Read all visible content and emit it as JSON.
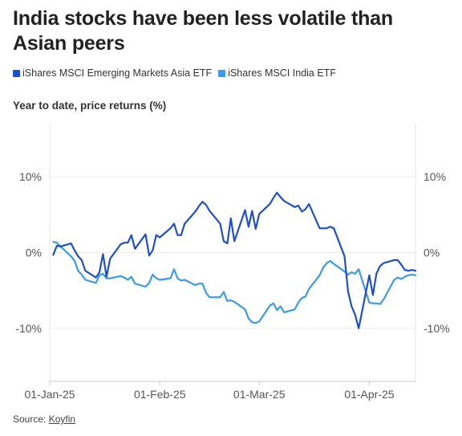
{
  "title": "India stocks have been less volatile than Asian peers",
  "legend": [
    {
      "label": "iShares MSCI Emerging Markets Asia ETF",
      "color": "#1f4fc9"
    },
    {
      "label": "iShares MSCI India ETF",
      "color": "#3a9be8"
    }
  ],
  "subtitle": "Year to date, price returns (%)",
  "source": {
    "prefix": "Source: ",
    "link": "Koyfin"
  },
  "chart_data": {
    "type": "line",
    "xlabel": "",
    "ylabel": "",
    "x_range": [
      0,
      103
    ],
    "ylim": [
      -17,
      17
    ],
    "y_ticks": [
      10,
      0,
      -10
    ],
    "y_tick_labels": [
      "10%",
      "0%",
      "-10%"
    ],
    "x_ticks": [
      {
        "x": 0,
        "label": "01-Jan-25"
      },
      {
        "x": 31,
        "label": "01-Feb-25"
      },
      {
        "x": 59,
        "label": "01-Mar-25"
      },
      {
        "x": 90,
        "label": "01-Apr-25"
      }
    ],
    "grid": "horizontal",
    "series": [
      {
        "name": "iShares MSCI Emerging Markets Asia ETF",
        "color": "#1f4fc9",
        "x": [
          1,
          2,
          3,
          6,
          7,
          8,
          9,
          10,
          13,
          14,
          15,
          16,
          17,
          20,
          21,
          22,
          23,
          24,
          27,
          28,
          29,
          30,
          31,
          34,
          35,
          36,
          37,
          38,
          41,
          42,
          43,
          44,
          45,
          48,
          49,
          50,
          51,
          52,
          55,
          56,
          57,
          58,
          59,
          62,
          63,
          64,
          65,
          66,
          69,
          70,
          71,
          72,
          73,
          76,
          77,
          78,
          79,
          80,
          83,
          84,
          85,
          86,
          87,
          90,
          91,
          92,
          93,
          94,
          97,
          98,
          99,
          100,
          101,
          102,
          103
        ],
        "y": [
          -0.3,
          0.9,
          0.8,
          1.2,
          0.3,
          -0.5,
          -1.0,
          -2.4,
          -3.3,
          -2.6,
          -0.2,
          -3.2,
          -0.8,
          1.1,
          1.3,
          1.3,
          2.3,
          0.5,
          2.4,
          -0.4,
          0.3,
          2.3,
          2.0,
          3.2,
          3.8,
          2.3,
          2.3,
          3.8,
          5.4,
          6.1,
          6.7,
          6.3,
          5.5,
          3.8,
          1.5,
          1.2,
          4.5,
          1.5,
          5.6,
          3.4,
          5.5,
          3.1,
          5.1,
          6.4,
          7.2,
          7.9,
          7.3,
          6.8,
          6.0,
          6.2,
          5.4,
          5.7,
          6.4,
          3.2,
          3.2,
          3.2,
          3.4,
          3.2,
          -0.5,
          -5.1,
          -7.1,
          -8.2,
          -10.0,
          -3.0,
          -5.6,
          -2.8,
          -1.8,
          -1.4,
          -1.0,
          -1.0,
          -1.6,
          -2.3,
          -2.4,
          -2.3,
          -2.4
        ],
        "x_note": "day of year"
      },
      {
        "name": "iShares MSCI India ETF",
        "color": "#3a9be8",
        "x": [
          1,
          2,
          3,
          6,
          7,
          8,
          9,
          10,
          13,
          14,
          15,
          16,
          17,
          20,
          21,
          22,
          23,
          24,
          27,
          28,
          29,
          30,
          31,
          34,
          35,
          36,
          37,
          38,
          41,
          42,
          43,
          44,
          45,
          48,
          49,
          50,
          51,
          52,
          55,
          56,
          57,
          58,
          59,
          62,
          63,
          64,
          65,
          66,
          69,
          70,
          71,
          72,
          73,
          76,
          77,
          78,
          79,
          80,
          83,
          84,
          85,
          86,
          87,
          90,
          91,
          92,
          93,
          94,
          97,
          98,
          99,
          100,
          101,
          102,
          103
        ],
        "y": [
          1.4,
          1.3,
          0.8,
          -0.5,
          -1.1,
          -2.4,
          -2.9,
          -3.6,
          -4.0,
          -3.0,
          -2.8,
          -3.4,
          -3.4,
          -3.1,
          -3.3,
          -3.6,
          -3.2,
          -4.1,
          -4.5,
          -4.0,
          -2.9,
          -3.4,
          -3.6,
          -3.4,
          -2.2,
          -3.4,
          -3.7,
          -3.6,
          -4.3,
          -4.1,
          -4.1,
          -5.3,
          -5.9,
          -5.9,
          -5.2,
          -6.4,
          -6.3,
          -6.5,
          -7.5,
          -8.7,
          -9.2,
          -9.3,
          -9.1,
          -7.0,
          -6.7,
          -7.6,
          -7.1,
          -7.9,
          -7.5,
          -6.6,
          -6.0,
          -5.8,
          -4.8,
          -3.0,
          -2.0,
          -1.4,
          -1.1,
          -1.5,
          -2.5,
          -2.9,
          -2.6,
          -2.8,
          -2.2,
          -6.6,
          -6.7,
          -6.7,
          -6.8,
          -6.2,
          -3.6,
          -3.3,
          -3.5,
          -3.2,
          -3.0,
          -2.9,
          -3.0
        ]
      }
    ]
  }
}
